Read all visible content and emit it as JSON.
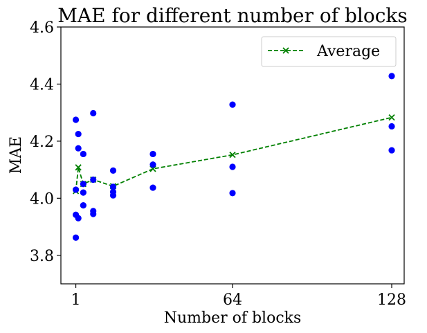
{
  "chart_data": {
    "type": "scatter",
    "title": "MAE for different number of blocks",
    "xlabel": "Number of blocks",
    "ylabel": "MAE",
    "xlim": [
      -5,
      133
    ],
    "ylim": [
      3.7,
      4.6
    ],
    "xticks": [
      1,
      64,
      128
    ],
    "yticks": [
      3.8,
      4.0,
      4.2,
      4.4,
      4.6
    ],
    "grid": false,
    "legend_position": "top-right",
    "series": [
      {
        "kind": "points",
        "color": "#0000ff",
        "x": [
          1,
          1,
          1,
          1,
          2,
          2,
          2,
          4,
          4,
          4,
          4,
          8,
          8,
          8,
          8,
          16,
          16,
          16,
          16,
          32,
          32,
          32,
          64,
          64,
          64,
          128,
          128,
          128
        ],
        "y": [
          4.275,
          3.942,
          3.862,
          4.03,
          4.225,
          4.175,
          3.93,
          4.155,
          4.02,
          3.975,
          4.05,
          4.298,
          3.955,
          3.945,
          4.065,
          4.097,
          4.022,
          4.01,
          4.04,
          4.155,
          4.118,
          4.037,
          4.328,
          4.11,
          4.018,
          4.428,
          4.252,
          4.168
        ]
      },
      {
        "name": "Average",
        "kind": "line",
        "color": "#008000",
        "marker": "x",
        "x": [
          1,
          2,
          4,
          8,
          16,
          32,
          64,
          128
        ],
        "y": [
          4.025,
          4.108,
          4.05,
          4.065,
          4.042,
          4.103,
          4.152,
          4.283
        ]
      }
    ]
  }
}
